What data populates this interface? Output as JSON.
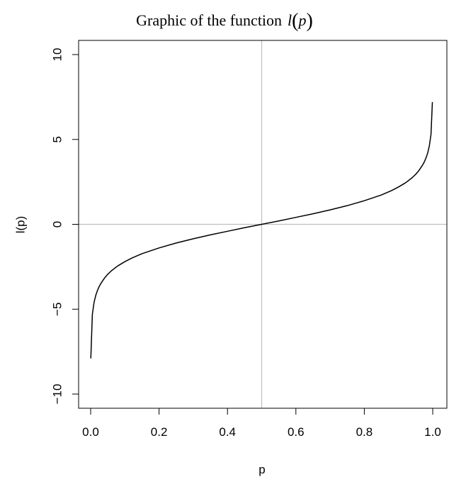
{
  "chart_data": {
    "type": "line",
    "title_text": "Graphic of the function",
    "title_math": {
      "fn": "l",
      "open": "(",
      "arg": "p",
      "close": ")"
    },
    "xlabel": "p",
    "ylabel": "l(p)",
    "xlim": [
      0,
      1
    ],
    "ylim": [
      -10,
      10
    ],
    "x_ticks": [
      0.0,
      0.2,
      0.4,
      0.6,
      0.8,
      1.0
    ],
    "x_tick_labels": [
      "0.0",
      "0.2",
      "0.4",
      "0.6",
      "0.8",
      "1.0"
    ],
    "y_ticks": [
      -10,
      -5,
      0,
      5,
      10
    ],
    "y_tick_labels": [
      "−10",
      "−5",
      "0",
      "5",
      "10"
    ],
    "reference_lines": {
      "vertical_x": 0.5,
      "horizontal_y": 0,
      "color": "#bebebe"
    },
    "series": [
      {
        "color": "#000000",
        "x": [
          0.0005,
          0.005,
          0.01,
          0.015,
          0.02,
          0.025,
          0.03,
          0.04,
          0.05,
          0.06,
          0.07,
          0.08,
          0.1,
          0.12,
          0.15,
          0.2,
          0.25,
          0.3,
          0.35,
          0.4,
          0.45,
          0.5,
          0.55,
          0.6,
          0.65,
          0.7,
          0.75,
          0.8,
          0.85,
          0.88,
          0.9,
          0.92,
          0.93,
          0.94,
          0.95,
          0.96,
          0.97,
          0.975,
          0.98,
          0.985,
          0.99,
          0.995,
          0.999
        ],
        "y": [
          -7.9,
          -5.3,
          -4.6,
          -4.18,
          -3.89,
          -3.66,
          -3.48,
          -3.18,
          -2.94,
          -2.75,
          -2.59,
          -2.44,
          -2.2,
          -1.99,
          -1.73,
          -1.39,
          -1.1,
          -0.85,
          -0.62,
          -0.41,
          -0.2,
          0,
          0.2,
          0.41,
          0.62,
          0.85,
          1.1,
          1.39,
          1.73,
          1.99,
          2.2,
          2.44,
          2.59,
          2.75,
          2.94,
          3.18,
          3.48,
          3.66,
          3.89,
          4.18,
          4.6,
          5.3,
          7.2
        ]
      }
    ]
  }
}
